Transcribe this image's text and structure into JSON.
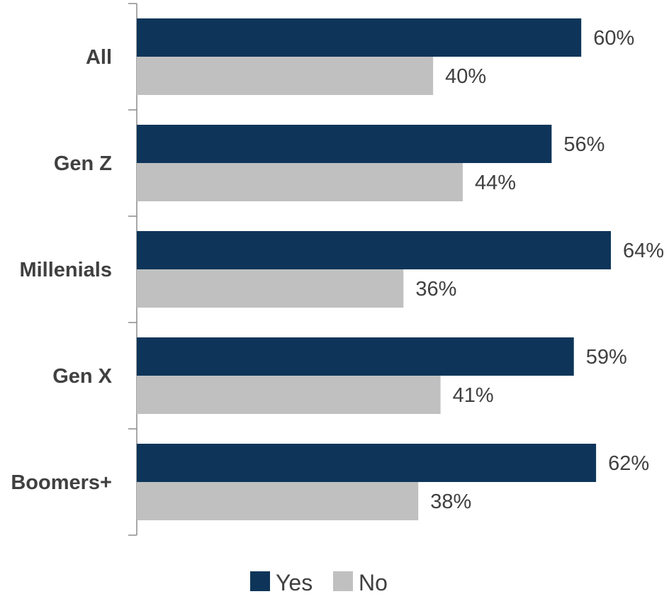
{
  "chart_data": {
    "type": "bar",
    "orientation": "horizontal",
    "categories": [
      "All",
      "Gen Z",
      "Millenials",
      "Gen X",
      "Boomers+"
    ],
    "series": [
      {
        "name": "Yes",
        "values": [
          60,
          56,
          64,
          59,
          62
        ],
        "color": "#0e3559"
      },
      {
        "name": "No",
        "values": [
          40,
          44,
          36,
          41,
          38
        ],
        "color": "#c0c0c0"
      }
    ],
    "value_labels": {
      "Yes": [
        "60%",
        "56%",
        "64%",
        "59%",
        "62%"
      ],
      "No": [
        "40%",
        "44%",
        "36%",
        "41%",
        "38%"
      ]
    },
    "xlim": [
      0,
      64
    ],
    "value_format": "percent",
    "grid": false,
    "legend_position": "bottom"
  }
}
